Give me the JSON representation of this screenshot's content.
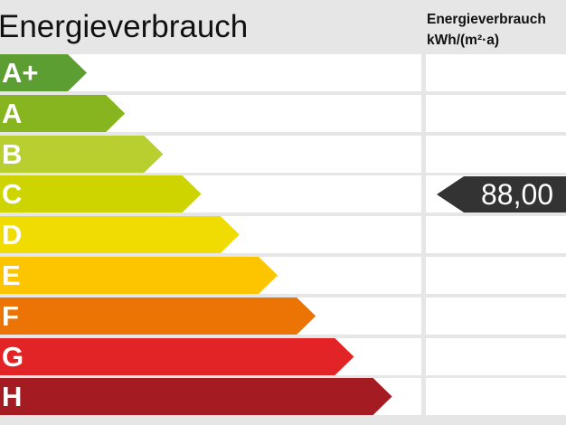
{
  "title": "Energieverbrauch",
  "unit_label": {
    "line1": "Energieverbrauch",
    "line2": "kWh/(m²·a)"
  },
  "classes": [
    {
      "label": "A+",
      "color": "#5c9e31"
    },
    {
      "label": "A",
      "color": "#86b51f"
    },
    {
      "label": "B",
      "color": "#b9cf2f"
    },
    {
      "label": "C",
      "color": "#cdd400"
    },
    {
      "label": "D",
      "color": "#f0dc00"
    },
    {
      "label": "E",
      "color": "#fdc400"
    },
    {
      "label": "F",
      "color": "#ec7404"
    },
    {
      "label": "G",
      "color": "#e32427"
    },
    {
      "label": "H",
      "color": "#a51b22"
    }
  ],
  "value": {
    "text": "88,00",
    "class": "C",
    "color": "#333333"
  }
}
